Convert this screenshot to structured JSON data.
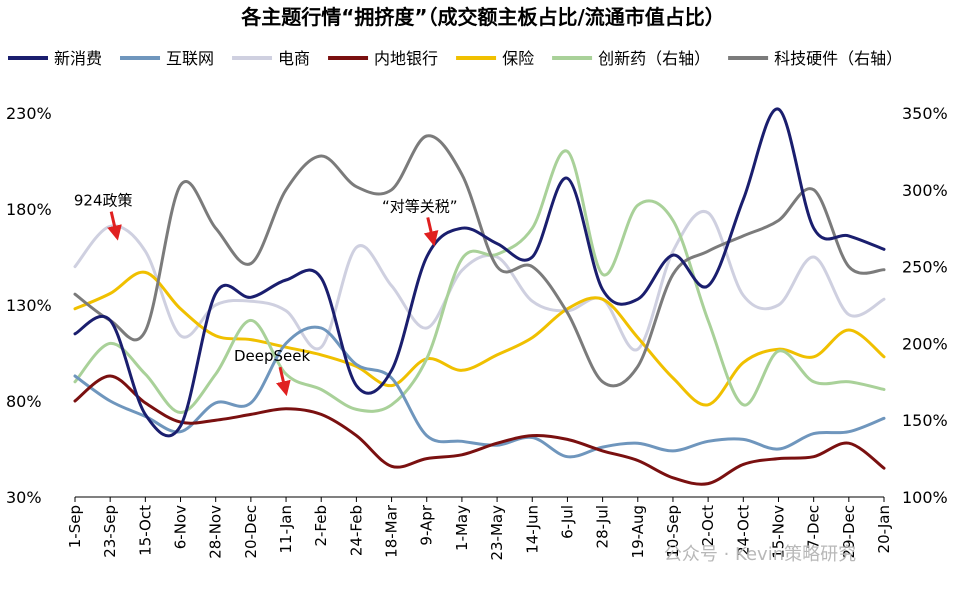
{
  "chart_data": {
    "type": "line",
    "title": "各主题行情“拥挤度”（成交额主板占比/流通市值占比）",
    "x": [
      "1-Sep",
      "23-Sep",
      "15-Oct",
      "6-Nov",
      "28-Nov",
      "20-Dec",
      "11-Jan",
      "2-Feb",
      "24-Feb",
      "18-Mar",
      "9-Apr",
      "1-May",
      "23-May",
      "14-Jun",
      "6-Jul",
      "28-Jul",
      "19-Aug",
      "10-Sep",
      "2-Oct",
      "24-Oct",
      "15-Nov",
      "7-Dec",
      "29-Dec",
      "20-Jan"
    ],
    "x_tick_labels": [
      "1-Sep",
      "23-Sep",
      "15-Oct",
      "6-Nov",
      "28-Nov",
      "20-Dec",
      "11-Jan",
      "2-Feb",
      "24-Feb",
      "18-Mar",
      "9-Apr",
      "1-May",
      "23-May",
      "14-Jun",
      "6-Jul",
      "28-Jul",
      "19-Aug",
      "10-Sep",
      "2-Oct",
      "24-Oct",
      "15-Nov",
      "7-Dec",
      "29-Dec",
      "20-Jan"
    ],
    "y_left": {
      "min": 30,
      "max": 230,
      "ticks": [
        "30%",
        "80%",
        "130%",
        "180%",
        "230%"
      ],
      "tick_values": [
        30,
        80,
        130,
        180,
        230
      ],
      "unit": "%"
    },
    "y_right": {
      "min": 100,
      "max": 350,
      "ticks": [
        "100%",
        "150%",
        "200%",
        "250%",
        "300%",
        "350%"
      ],
      "tick_values": [
        100,
        150,
        200,
        250,
        300,
        350
      ],
      "unit": "%"
    },
    "grid": false,
    "legend_position": "top",
    "series": [
      {
        "name": "新消费",
        "color": "#1a1e6e",
        "axis": "left",
        "values": [
          115,
          122,
          73,
          67,
          136,
          134,
          143,
          144,
          88,
          96,
          155,
          170,
          162,
          155,
          196,
          138,
          133,
          156,
          140,
          185,
          232,
          170,
          166,
          159
        ]
      },
      {
        "name": "互联网",
        "color": "#6f96bd",
        "axis": "left",
        "values": [
          93,
          80,
          72,
          64,
          79,
          79,
          110,
          118,
          99,
          92,
          62,
          59,
          57,
          61,
          51,
          56,
          58,
          54,
          59,
          60,
          55,
          63,
          64,
          71
        ]
      },
      {
        "name": "电商",
        "color": "#cfd0e0",
        "axis": "left",
        "values": [
          150,
          171,
          158,
          114,
          130,
          132,
          127,
          108,
          160,
          140,
          118,
          148,
          155,
          132,
          127,
          133,
          107,
          158,
          178,
          135,
          130,
          155,
          125,
          133
        ]
      },
      {
        "name": "内地银行",
        "color": "#7a1010",
        "axis": "left",
        "values": [
          80,
          93,
          79,
          69,
          70,
          73,
          76,
          73,
          62,
          46,
          50,
          52,
          58,
          62,
          60,
          54,
          49,
          40,
          37,
          47,
          50,
          51,
          58,
          45
        ]
      },
      {
        "name": "保险",
        "color": "#f0c000",
        "axis": "left",
        "values": [
          128,
          136,
          147,
          128,
          114,
          112,
          108,
          104,
          98,
          88,
          102,
          96,
          104,
          113,
          128,
          133,
          113,
          92,
          78,
          100,
          107,
          103,
          117,
          103
        ]
      },
      {
        "name": "创新药（右轴）",
        "color": "#a9d199",
        "axis": "right",
        "values": [
          175,
          200,
          180,
          155,
          180,
          215,
          180,
          170,
          157,
          160,
          190,
          255,
          258,
          275,
          325,
          245,
          290,
          280,
          215,
          160,
          195,
          175,
          175,
          170
        ]
      },
      {
        "name": "科技硬件（右轴）",
        "color": "#7b7b7b",
        "axis": "right",
        "values": [
          232,
          215,
          208,
          303,
          275,
          252,
          300,
          322,
          302,
          300,
          335,
          310,
          250,
          250,
          220,
          175,
          185,
          245,
          260,
          270,
          280,
          300,
          250,
          248
        ]
      }
    ],
    "annotations": [
      {
        "text": "924政策",
        "x_index": 1.2,
        "value": 163,
        "axis": "left",
        "color": "#000000"
      },
      {
        "text": "DeepSeek",
        "x_index": 6.0,
        "value": 82,
        "axis": "left",
        "color": "#000000"
      },
      {
        "text": "“对等关税”",
        "x_index": 10.2,
        "value": 160,
        "axis": "left",
        "color": "#000000"
      }
    ],
    "arrow_color": "#e02020",
    "watermark": "公众号 · Kevin策略研究"
  }
}
